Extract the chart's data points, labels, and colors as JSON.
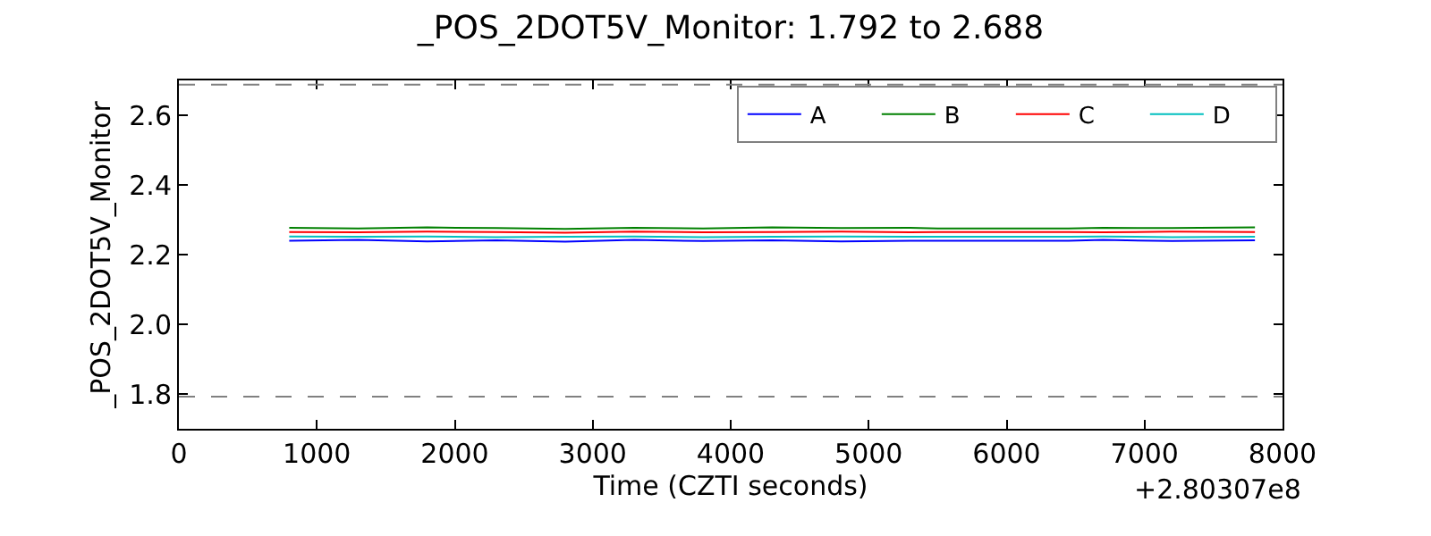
{
  "chart_data": {
    "type": "line",
    "title": "_POS_2DOT5V_Monitor: 1.792 to 2.688",
    "xlabel": "Time (CZTI seconds)",
    "ylabel": "_POS_2DOT5V_Monitor",
    "x": [
      800,
      1300,
      1800,
      2300,
      2800,
      3300,
      3800,
      4300,
      4800,
      5300,
      5500,
      6450,
      6700,
      7200,
      7800
    ],
    "series": [
      {
        "name": "A",
        "color": "#0000ff",
        "values": [
          2.24,
          2.242,
          2.238,
          2.241,
          2.237,
          2.242,
          2.239,
          2.241,
          2.238,
          2.24,
          2.24,
          2.24,
          2.242,
          2.239,
          2.241
        ]
      },
      {
        "name": "B",
        "color": "#008000",
        "values": [
          2.277,
          2.275,
          2.278,
          2.276,
          2.274,
          2.277,
          2.275,
          2.278,
          2.276,
          2.277,
          2.275,
          2.275,
          2.277,
          2.276,
          2.278
        ]
      },
      {
        "name": "C",
        "color": "#ff0000",
        "values": [
          2.265,
          2.264,
          2.266,
          2.265,
          2.263,
          2.266,
          2.264,
          2.265,
          2.266,
          2.264,
          2.265,
          2.265,
          2.264,
          2.266,
          2.265
        ]
      },
      {
        "name": "D",
        "color": "#00bfbf",
        "values": [
          2.252,
          2.251,
          2.252,
          2.25,
          2.251,
          2.252,
          2.25,
          2.251,
          2.252,
          2.251,
          2.251,
          2.251,
          2.252,
          2.25,
          2.251
        ]
      }
    ],
    "ref_lines": [
      {
        "axis": "y",
        "value": 1.792,
        "color": "#808080",
        "line_style": "dashed"
      },
      {
        "axis": "y",
        "value": 2.688,
        "color": "#808080",
        "line_style": "dashed"
      }
    ],
    "annotations": [
      "+2.80307e8"
    ],
    "xlim": [
      0,
      8000
    ],
    "xticks": [
      0,
      1000,
      2000,
      3000,
      4000,
      5000,
      6000,
      7000,
      8000
    ],
    "ylim": [
      1.7,
      2.7
    ],
    "yticks": [
      1.8,
      {
        "value": 2,
        "label": "2.0"
      },
      2.2,
      2.4,
      2.6
    ],
    "legend": "top right",
    "marker": "none",
    "line_style": "solid"
  }
}
